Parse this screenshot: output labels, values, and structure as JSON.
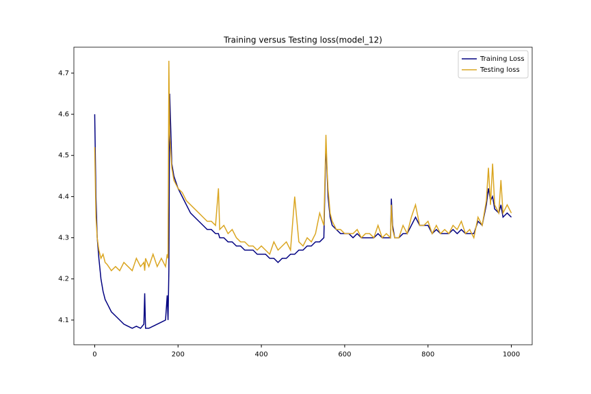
{
  "chart_data": {
    "type": "line",
    "title": "Training versus Testing loss(model_12)",
    "x": [
      0,
      3,
      6,
      10,
      15,
      20,
      25,
      30,
      40,
      50,
      60,
      70,
      80,
      90,
      100,
      110,
      118,
      120,
      122,
      130,
      140,
      150,
      160,
      170,
      174,
      176,
      178,
      180,
      185,
      190,
      200,
      210,
      220,
      230,
      240,
      250,
      260,
      270,
      280,
      290,
      297,
      300,
      310,
      320,
      330,
      340,
      350,
      360,
      370,
      380,
      390,
      400,
      410,
      420,
      430,
      440,
      450,
      460,
      470,
      480,
      490,
      500,
      510,
      520,
      530,
      540,
      550,
      555,
      558,
      560,
      565,
      570,
      580,
      590,
      600,
      610,
      620,
      630,
      640,
      650,
      660,
      670,
      680,
      690,
      700,
      710,
      712,
      715,
      720,
      730,
      740,
      750,
      760,
      770,
      780,
      790,
      800,
      810,
      820,
      830,
      840,
      850,
      860,
      870,
      880,
      890,
      900,
      910,
      920,
      930,
      940,
      945,
      950,
      955,
      960,
      970,
      975,
      980,
      990,
      1000
    ],
    "series": [
      {
        "name": "Training Loss",
        "color": "#000080",
        "values": [
          4.6,
          4.4,
          4.3,
          4.25,
          4.2,
          4.17,
          4.15,
          4.14,
          4.12,
          4.11,
          4.1,
          4.09,
          4.085,
          4.08,
          4.085,
          4.08,
          4.09,
          4.165,
          4.08,
          4.08,
          4.085,
          4.09,
          4.095,
          4.1,
          4.16,
          4.1,
          4.22,
          4.65,
          4.48,
          4.45,
          4.42,
          4.4,
          4.38,
          4.36,
          4.35,
          4.34,
          4.33,
          4.32,
          4.32,
          4.31,
          4.31,
          4.3,
          4.3,
          4.29,
          4.29,
          4.28,
          4.28,
          4.27,
          4.27,
          4.27,
          4.26,
          4.26,
          4.26,
          4.25,
          4.25,
          4.24,
          4.25,
          4.25,
          4.26,
          4.26,
          4.27,
          4.27,
          4.28,
          4.28,
          4.29,
          4.29,
          4.3,
          4.53,
          4.45,
          4.4,
          4.35,
          4.33,
          4.32,
          4.31,
          4.31,
          4.31,
          4.3,
          4.31,
          4.3,
          4.3,
          4.3,
          4.3,
          4.31,
          4.3,
          4.3,
          4.3,
          4.395,
          4.33,
          4.3,
          4.3,
          4.31,
          4.31,
          4.33,
          4.35,
          4.33,
          4.33,
          4.33,
          4.31,
          4.32,
          4.31,
          4.31,
          4.31,
          4.32,
          4.31,
          4.32,
          4.31,
          4.31,
          4.31,
          4.34,
          4.33,
          4.38,
          4.42,
          4.39,
          4.4,
          4.37,
          4.36,
          4.38,
          4.35,
          4.36,
          4.35
        ]
      },
      {
        "name": "Testing loss",
        "color": "#daa520",
        "values": [
          4.52,
          4.35,
          4.3,
          4.27,
          4.25,
          4.26,
          4.24,
          4.235,
          4.22,
          4.23,
          4.22,
          4.24,
          4.23,
          4.22,
          4.25,
          4.23,
          4.24,
          4.22,
          4.25,
          4.23,
          4.26,
          4.23,
          4.25,
          4.23,
          4.26,
          4.25,
          4.73,
          4.55,
          4.47,
          4.44,
          4.42,
          4.41,
          4.39,
          4.38,
          4.37,
          4.36,
          4.35,
          4.34,
          4.34,
          4.33,
          4.42,
          4.32,
          4.33,
          4.31,
          4.32,
          4.3,
          4.29,
          4.29,
          4.28,
          4.28,
          4.27,
          4.28,
          4.27,
          4.26,
          4.29,
          4.27,
          4.28,
          4.29,
          4.27,
          4.4,
          4.29,
          4.28,
          4.3,
          4.29,
          4.31,
          4.36,
          4.33,
          4.55,
          4.46,
          4.42,
          4.36,
          4.34,
          4.32,
          4.32,
          4.31,
          4.31,
          4.31,
          4.32,
          4.3,
          4.31,
          4.31,
          4.3,
          4.33,
          4.3,
          4.31,
          4.3,
          4.38,
          4.32,
          4.3,
          4.3,
          4.33,
          4.31,
          4.35,
          4.38,
          4.33,
          4.33,
          4.34,
          4.31,
          4.33,
          4.31,
          4.32,
          4.31,
          4.33,
          4.32,
          4.34,
          4.31,
          4.32,
          4.3,
          4.35,
          4.33,
          4.39,
          4.47,
          4.38,
          4.48,
          4.38,
          4.36,
          4.44,
          4.36,
          4.38,
          4.36
        ]
      }
    ],
    "xlim": [
      -50,
      1050
    ],
    "ylim": [
      4.04,
      4.763
    ],
    "xticks": [
      0,
      200,
      400,
      600,
      800,
      1000
    ],
    "yticks": [
      4.1,
      4.2,
      4.3,
      4.4,
      4.5,
      4.6,
      4.7
    ],
    "legend": "upper right"
  }
}
